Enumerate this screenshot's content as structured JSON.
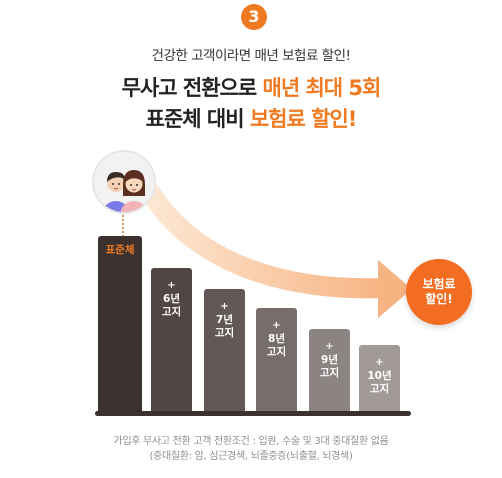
{
  "step_number": "3",
  "subtitle": "건강한 고객이라면 매년 보험료 할인!",
  "headline": {
    "line1_prefix": "무사고 전환으로 ",
    "line1_highlight": "매년 최대 5회",
    "line2_prefix": "표준체 대비 ",
    "line2_highlight": "보험료 할인!"
  },
  "chart_data": {
    "type": "bar",
    "categories": [
      "표준체",
      "6년 고지",
      "7년 고지",
      "8년 고지",
      "9년 고지",
      "10년 고지"
    ],
    "values": [
      100,
      77,
      70,
      61,
      51,
      42
    ]
  },
  "bars": [
    {
      "label": "표준체",
      "plus": ""
    },
    {
      "line1": "6년",
      "line2": "고지",
      "plus": "+"
    },
    {
      "line1": "7년",
      "line2": "고지",
      "plus": "+"
    },
    {
      "line1": "8년",
      "line2": "고지",
      "plus": "+"
    },
    {
      "line1": "9년",
      "line2": "고지",
      "plus": "+"
    },
    {
      "line1": "10년",
      "line2": "고지",
      "plus": "+"
    }
  ],
  "bubble": {
    "line1": "보험료",
    "line2": "할인!"
  },
  "footnote": {
    "line1": "가입후 무사고 전환 고객 전환조건 : 입원, 수술 및 3대 중대질환 없음",
    "line2": "(중대질환: 암, 심근경색, 뇌졸중증(뇌출혈, 뇌경색)"
  },
  "colors": {
    "accent": "#f07a22",
    "bars": [
      "#3b312e",
      "#514643",
      "#625855",
      "#776e6b",
      "#8c8482",
      "#a19a98"
    ]
  }
}
